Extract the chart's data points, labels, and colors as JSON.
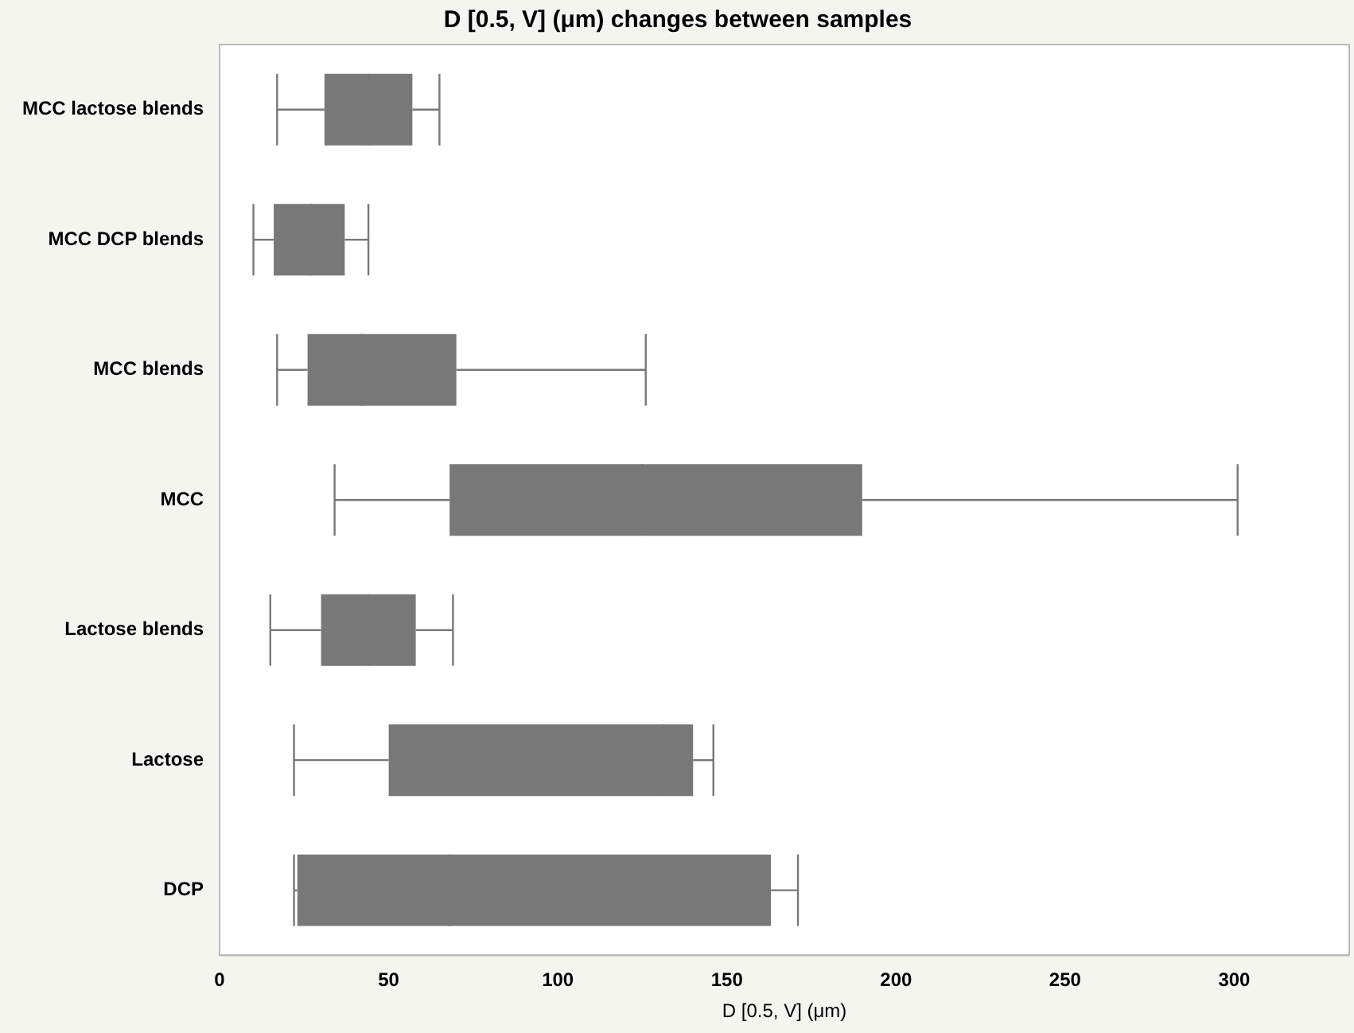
{
  "chart_data": {
    "type": "box",
    "orientation": "horizontal",
    "title": "D [0.5, V] (μm) changes between samples",
    "xlabel": "D [0.5, V] (μm)",
    "categories": [
      "MCC lactose blends",
      "MCC DCP blends",
      "MCC blends",
      "MCC",
      "Lactose blends",
      "Lactose",
      "DCP"
    ],
    "series": [
      {
        "color": "#787878",
        "boxes": [
          {
            "low": 17,
            "q1": 31,
            "median": 44,
            "q3": 57,
            "high": 65
          },
          {
            "low": 10,
            "q1": 16,
            "median": 27,
            "q3": 37,
            "high": 44
          },
          {
            "low": 17,
            "q1": 26,
            "median": 42,
            "q3": 70,
            "high": 126
          },
          {
            "low": 34,
            "q1": 68,
            "median": 125,
            "q3": 190,
            "high": 301
          },
          {
            "low": 15,
            "q1": 30,
            "median": 44,
            "q3": 58,
            "high": 69
          },
          {
            "low": 22,
            "q1": 50,
            "median": 131,
            "q3": 140,
            "high": 146
          },
          {
            "low": 22,
            "q1": 23,
            "median": 68,
            "q3": 163,
            "high": 171
          }
        ]
      }
    ],
    "xlim": [
      0,
      334
    ],
    "xticks": [
      0,
      50,
      100,
      150,
      200,
      250,
      300
    ],
    "grid": false,
    "legend": false
  }
}
